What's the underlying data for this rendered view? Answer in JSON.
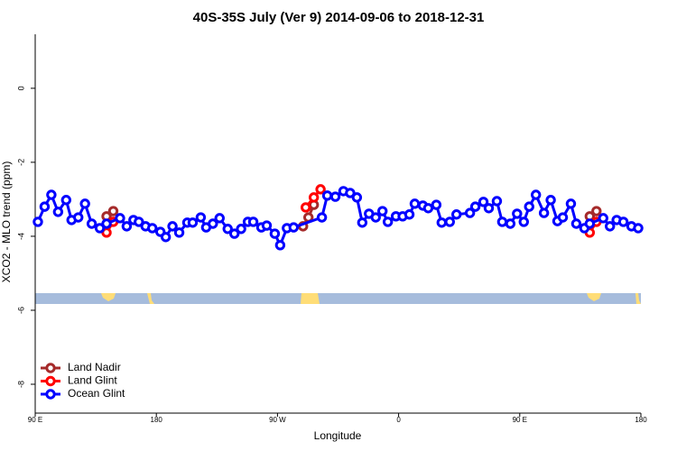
{
  "chart_data": {
    "type": "line",
    "title": "40S-35S July (Ver 9)   2014-09-06 to 2018-12-31",
    "x_label": "Longitude",
    "y_label": "XCO2 - MLO trend (ppm)",
    "xlim": [
      90,
      540
    ],
    "xticks": [
      {
        "value": 90,
        "label": "90 E"
      },
      {
        "value": 180,
        "label": "180"
      },
      {
        "value": 270,
        "label": "90 W"
      },
      {
        "value": 360,
        "label": "0"
      },
      {
        "value": 450,
        "label": "90 E"
      },
      {
        "value": 540,
        "label": "180"
      }
    ],
    "ylim": [
      -8.78,
      1.46
    ],
    "yticks": [
      0,
      -2,
      -4,
      -6,
      -8
    ],
    "legend": "bottom-left",
    "series": [
      {
        "name": "Land Nadir",
        "color": "#a52a2a",
        "x": [
          143,
          148,
          null,
          289,
          293,
          297,
          null,
          502,
          507
        ],
        "values": [
          -3.46,
          -3.32,
          null,
          -3.73,
          -3.49,
          -3.15,
          null,
          -3.46,
          -3.32
        ]
      },
      {
        "name": "Land Glint",
        "color": "#ff0000",
        "x": [
          143,
          148,
          null,
          291,
          297,
          302,
          null,
          502,
          507
        ],
        "values": [
          -3.9,
          -3.61,
          null,
          -3.22,
          -2.95,
          -2.73,
          null,
          -3.9,
          -3.61
        ]
      },
      {
        "name": "Ocean Glint",
        "color": "#0000ff",
        "x": [
          92,
          97,
          102,
          107,
          113,
          117,
          122,
          127,
          132,
          138,
          143,
          153,
          158,
          163,
          167,
          172,
          177,
          183,
          187,
          192,
          197,
          203,
          207,
          213,
          217,
          222,
          227,
          233,
          238,
          243,
          248,
          252,
          258,
          262,
          268,
          272,
          277,
          282,
          303,
          307,
          313,
          319,
          324,
          329,
          333,
          338,
          343,
          348,
          352,
          358,
          363,
          368,
          372,
          378,
          382,
          388,
          392,
          398,
          403,
          413,
          417,
          423,
          427,
          433,
          437,
          443,
          448,
          453,
          457,
          462,
          468,
          473,
          478,
          482,
          488,
          492,
          498,
          502,
          512,
          517,
          522,
          527,
          533,
          538
        ],
        "values": [
          -3.61,
          -3.2,
          -2.88,
          -3.34,
          -3.02,
          -3.56,
          -3.49,
          -3.12,
          -3.66,
          -3.78,
          -3.66,
          -3.51,
          -3.73,
          -3.56,
          -3.61,
          -3.73,
          -3.78,
          -3.88,
          -4.02,
          -3.73,
          -3.9,
          -3.63,
          -3.63,
          -3.49,
          -3.76,
          -3.66,
          -3.51,
          -3.8,
          -3.93,
          -3.8,
          -3.61,
          -3.61,
          -3.76,
          -3.71,
          -3.93,
          -4.24,
          -3.78,
          -3.76,
          -3.49,
          -2.9,
          -2.93,
          -2.78,
          -2.83,
          -2.95,
          -3.63,
          -3.39,
          -3.49,
          -3.32,
          -3.61,
          -3.46,
          -3.46,
          -3.41,
          -3.12,
          -3.17,
          -3.24,
          -3.15,
          -3.63,
          -3.61,
          -3.41,
          -3.37,
          -3.2,
          -3.07,
          -3.24,
          -3.05,
          -3.61,
          -3.66,
          -3.39,
          -3.61,
          -3.2,
          -2.88,
          -3.37,
          -3.02,
          -3.59,
          -3.49,
          -3.12,
          -3.66,
          -3.78,
          -3.66,
          -3.51,
          -3.73,
          -3.56,
          -3.61,
          -3.73,
          -3.78
        ]
      }
    ]
  }
}
